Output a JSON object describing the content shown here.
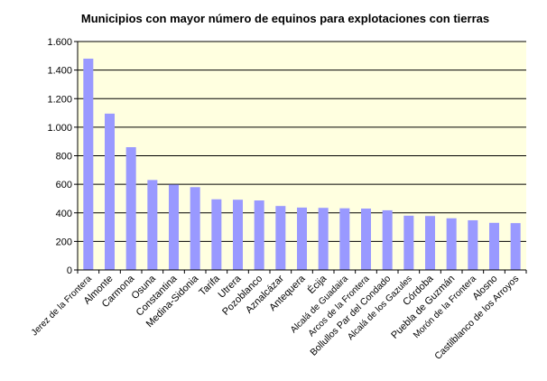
{
  "chart_data": {
    "type": "bar",
    "title": "Municipios con mayor número de equinos para explotaciones con tierras",
    "xlabel": "",
    "ylabel": "",
    "ylim": [
      0,
      1600
    ],
    "yticks": [
      0,
      200,
      400,
      600,
      800,
      1000,
      1200,
      1400,
      1600
    ],
    "ytick_labels": [
      "0",
      "200",
      "400",
      "600",
      "800",
      "1.000",
      "1.200",
      "1.400",
      "1.600"
    ],
    "grid": true,
    "legend": "none",
    "plot_background": "#ffffe0",
    "bar_color": "#9999ff",
    "grid_color": "#000000",
    "categories": [
      "Jerez de la Frontera",
      "Almonte",
      "Carmona",
      "Osuna",
      "Constantina",
      "Medina-Sidonia",
      "Tarifa",
      "Utrera",
      "Pozoblanco",
      "Aznalcázar",
      "Antequera",
      "Écija",
      "Alcalá de Guadaira",
      "Arcos de la Frontera",
      "Bollullos Par del Condado",
      "Alcalá de los Gazules",
      "Córdoba",
      "Puebla de Guzmán",
      "Morón de la Frontera",
      "Alosno",
      "Castilblanco de los Arroyos"
    ],
    "values": [
      1480,
      1095,
      860,
      630,
      598,
      580,
      495,
      492,
      487,
      448,
      437,
      435,
      432,
      430,
      418,
      380,
      378,
      362,
      348,
      330,
      328
    ]
  }
}
